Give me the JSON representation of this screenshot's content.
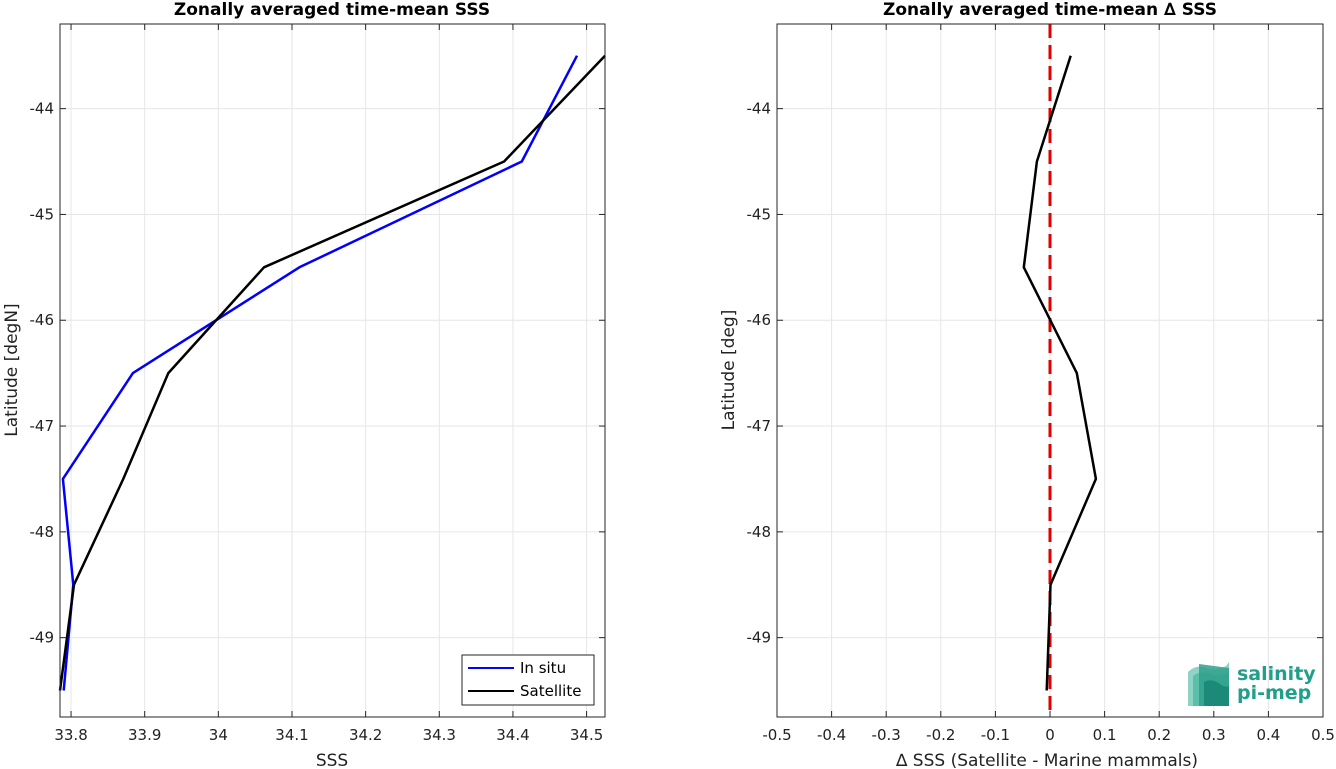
{
  "chart_data": [
    {
      "type": "line",
      "title": "Zonally averaged time-mean SSS",
      "xlabel": "SSS",
      "ylabel": "Latitude [degN]",
      "xlim": [
        33.785,
        34.525
      ],
      "ylim": [
        -49.75,
        -43.2
      ],
      "xticks": [
        33.8,
        33.9,
        34,
        34.1,
        34.2,
        34.3,
        34.4,
        34.5
      ],
      "xtick_labels": [
        "33.8",
        "33.9",
        "34",
        "34.1",
        "34.2",
        "34.3",
        "34.4",
        "34.5"
      ],
      "yticks": [
        -49,
        -48,
        -47,
        -46,
        -45,
        -44
      ],
      "ytick_labels": [
        "-49",
        "-48",
        "-47",
        "-46",
        "-45",
        "-44"
      ],
      "grid": true,
      "legend_position": "bottom-right",
      "y": [
        -43.5,
        -44.5,
        -45.5,
        -46.5,
        -47.5,
        -48.5,
        -49.5
      ],
      "series": [
        {
          "name": "In situ",
          "color": "#0000ff",
          "x": [
            34.487,
            34.412,
            34.11,
            33.884,
            33.789,
            33.803,
            33.79
          ]
        },
        {
          "name": "Satellite",
          "color": "#000000",
          "x": [
            34.525,
            34.388,
            34.062,
            33.932,
            33.871,
            33.804,
            33.785
          ]
        }
      ]
    },
    {
      "type": "line",
      "title": "Zonally averaged time-mean ∆ SSS",
      "xlabel": "∆ SSS (Satellite - Marine mammals)",
      "ylabel": "Latitude [deg]",
      "xlim": [
        -0.5,
        0.5
      ],
      "ylim": [
        -49.75,
        -43.2
      ],
      "xticks": [
        -0.5,
        -0.4,
        -0.3,
        -0.2,
        -0.1,
        0,
        0.1,
        0.2,
        0.3,
        0.4,
        0.5
      ],
      "xtick_labels": [
        "-0.5",
        "-0.4",
        "-0.3",
        "-0.2",
        "-0.1",
        "0",
        "0.1",
        "0.2",
        "0.3",
        "0.4",
        "0.5"
      ],
      "yticks": [
        -49,
        -48,
        -47,
        -46,
        -45,
        -44
      ],
      "ytick_labels": [
        "-49",
        "-48",
        "-47",
        "-46",
        "-45",
        "-44"
      ],
      "grid": true,
      "reference_line": {
        "x": 0,
        "color": "#e00000",
        "style": "dashed"
      },
      "y": [
        -43.5,
        -44.5,
        -45.5,
        -46.5,
        -47.5,
        -48.5,
        -49.5
      ],
      "series": [
        {
          "name": "",
          "color": "#000000",
          "x": [
            0.038,
            -0.024,
            -0.048,
            0.049,
            0.084,
            0.001,
            -0.006
          ]
        }
      ]
    }
  ],
  "logo": {
    "line1": "salinity",
    "line2": "pi-mep",
    "color": "#20a08a"
  }
}
